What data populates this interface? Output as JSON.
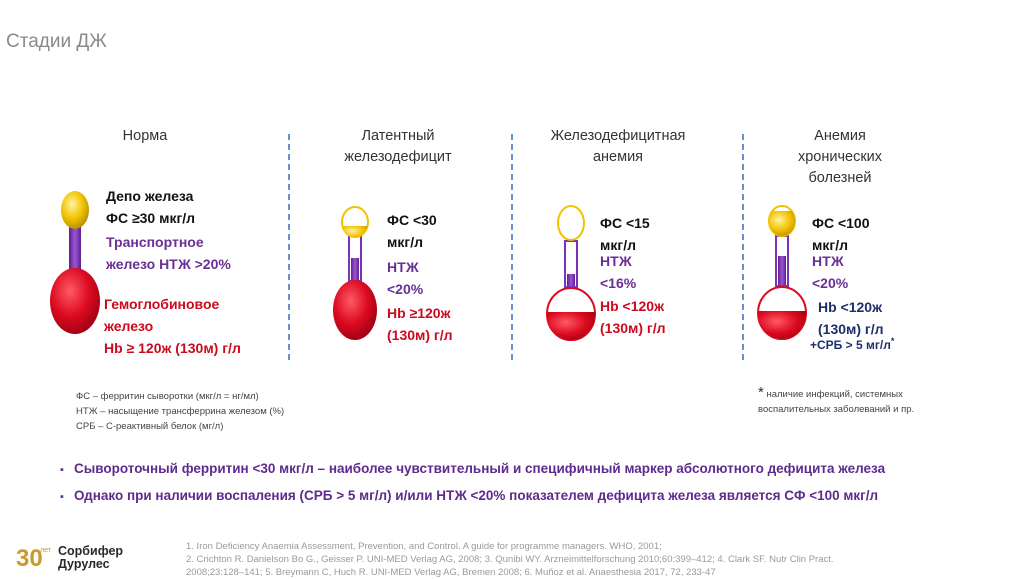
{
  "page": {
    "title": "Стадии ДЖ"
  },
  "stages": [
    {
      "title_lines": [
        "Норма"
      ],
      "labels": {
        "depot": [
          "Депо железа",
          "ФС ≥30 мкг/л"
        ],
        "transport": [
          "Транспортное",
          "железо НТЖ >20%"
        ],
        "hb": [
          "Гемоглобиновое",
          "железо",
          "Hb ≥ 120ж (130м) г/л"
        ]
      },
      "levels": {
        "ferritin_fill": 1.0,
        "transport_fill": 1.0,
        "hb_fill": 1.0
      }
    },
    {
      "title_lines": [
        "Латентный",
        "железодефицит"
      ],
      "labels": {
        "depot": [
          "ФС <30",
          "мкг/л"
        ],
        "transport": [
          "НТЖ",
          "<20%"
        ],
        "hb": [
          "Hb ≥120ж",
          "(130м) г/л"
        ]
      },
      "levels": {
        "ferritin_fill": 0.4,
        "transport_fill": 0.45,
        "hb_fill": 1.0
      }
    },
    {
      "title_lines": [
        "Железодефицитная",
        "анемия"
      ],
      "labels": {
        "depot": [
          "ФС <15",
          "мкг/л"
        ],
        "transport": [
          "НТЖ",
          "<16%"
        ],
        "hb": [
          "Hb <120ж",
          "(130м) г/л"
        ]
      },
      "levels": {
        "ferritin_fill": 0.0,
        "transport_fill": 0.2,
        "hb_fill": 0.55
      }
    },
    {
      "title_lines": [
        "Анемия",
        "хронических",
        "болезней"
      ],
      "labels": {
        "depot": [
          "ФС <100",
          "мкг/л"
        ],
        "transport": [
          "НТЖ",
          "<20%"
        ],
        "hb": [
          "Hb <120ж",
          "(130м) г/л"
        ],
        "crp": "+СРБ > 5 мг/л",
        "crp_star": "*"
      },
      "levels": {
        "ferritin_fill": 0.7,
        "transport_fill": 0.55,
        "hb_fill": 0.55
      }
    }
  ],
  "legend": [
    "ФС – ферритин сыворотки (мкг/л = нг/мл)",
    "НТЖ – насыщение трансферрина железом (%)",
    "СРБ – С-реактивный белок (мг/л)"
  ],
  "note": {
    "star": "*",
    "lines": [
      "наличие инфекций, системных",
      "воспалительных заболеваний и пр."
    ]
  },
  "bullets": [
    "Сывороточный ферритин <30 мкг/л – наиболее чувствительный и специфичный маркер абсолютного дефицита железа",
    "Однако при наличии воспаления (СРБ > 5 мг/л) и/или НТЖ <20% показателем дефицита железа является СФ <100 мкг/л"
  ],
  "logo": {
    "badge": "30",
    "badge_sub": "лет",
    "lines": [
      "Сорбифер",
      "Дурулес"
    ]
  },
  "references": [
    "1. Iron Deficiency Anaemia Assessment, Prevention, and Control. A guide for programme managers. WHO, 2001;",
    "2. Crichton R. Danielson Bo G., Geisser P. UNI-MED Verlag AG, 2008; 3. Qunibi WY. Arzneimittelforschung 2010;60:399–412; 4. Clark SF. Nutr Clin Pract.",
    "2008;23:128–141; 5. Breymann C, Huch R. UNI-MED Verlag AG, Bremen 2008; 6. Muñoz et al. Anaesthesia 2017, 72, 233-47"
  ],
  "colors": {
    "ferritin": "#f2c200",
    "transport": "#7b34b5",
    "hb": "#dc0a20",
    "divider": "#6d8fc9"
  }
}
